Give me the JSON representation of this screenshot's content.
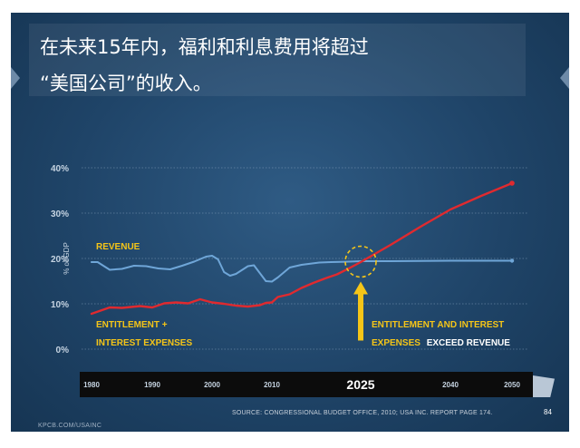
{
  "slide": {
    "title_line1": "在未来15年内，福利和利息费用将超过",
    "title_line2": "“美国公司”的收入。",
    "source": "SOURCE: CONGRESSIONAL BUDGET OFFICE, 2010; USA INC. REPORT PAGE 174.",
    "page_number": "84",
    "site": "KPCB.COM/USAINC"
  },
  "chart_data": {
    "type": "line",
    "ylabel": "% of GDP",
    "ylim": [
      0,
      40
    ],
    "yticks": [
      "0%",
      "10%",
      "20%",
      "30%",
      "40%"
    ],
    "xticks": [
      "1980",
      "1990",
      "2000",
      "2010",
      "2025",
      "2040",
      "2050"
    ],
    "grid": true,
    "series": [
      {
        "name": "REVENUE",
        "color": "#6fa6d8",
        "x": [
          1980,
          1981,
          1983,
          1985,
          1987,
          1989,
          1991,
          1993,
          1995,
          1997,
          1999,
          2000,
          2001,
          2002,
          2003,
          2004,
          2006,
          2007,
          2009,
          2010,
          2011,
          2013,
          2015,
          2018,
          2020,
          2023,
          2025,
          2030,
          2040,
          2050
        ],
        "values": [
          19.2,
          19.2,
          17.5,
          17.7,
          18.4,
          18.3,
          17.8,
          17.6,
          18.4,
          19.3,
          20.4,
          20.6,
          19.8,
          17.0,
          16.2,
          16.6,
          18.3,
          18.5,
          15.0,
          14.9,
          15.8,
          18.0,
          18.6,
          19.1,
          19.2,
          19.3,
          19.4,
          19.4,
          19.5,
          19.5
        ]
      },
      {
        "name_line1": "ENTITLEMENT +",
        "name_line2": "INTEREST EXPENSES",
        "color": "#e02a2f",
        "x": [
          1980,
          1983,
          1985,
          1988,
          1990,
          1992,
          1994,
          1996,
          1998,
          2000,
          2002,
          2004,
          2006,
          2008,
          2009,
          2010,
          2011,
          2013,
          2015,
          2017,
          2019,
          2021,
          2023,
          2025,
          2030,
          2035,
          2040,
          2045,
          2050
        ],
        "values": [
          7.8,
          9.2,
          9.1,
          9.5,
          9.2,
          10.1,
          10.3,
          10.1,
          11.0,
          10.3,
          10.0,
          9.6,
          9.4,
          9.7,
          10.2,
          10.3,
          11.5,
          12.1,
          13.5,
          14.6,
          15.6,
          16.5,
          17.8,
          19.2,
          23.0,
          27.0,
          30.8,
          33.8,
          36.6
        ]
      }
    ],
    "annotations": [
      {
        "text_line1": "ENTITLEMENT AND INTEREST",
        "text_line2a": "EXPENSES",
        "text_line2b": "EXCEED REVENUE",
        "color": "#f5c518",
        "x": 2025
      }
    ]
  }
}
